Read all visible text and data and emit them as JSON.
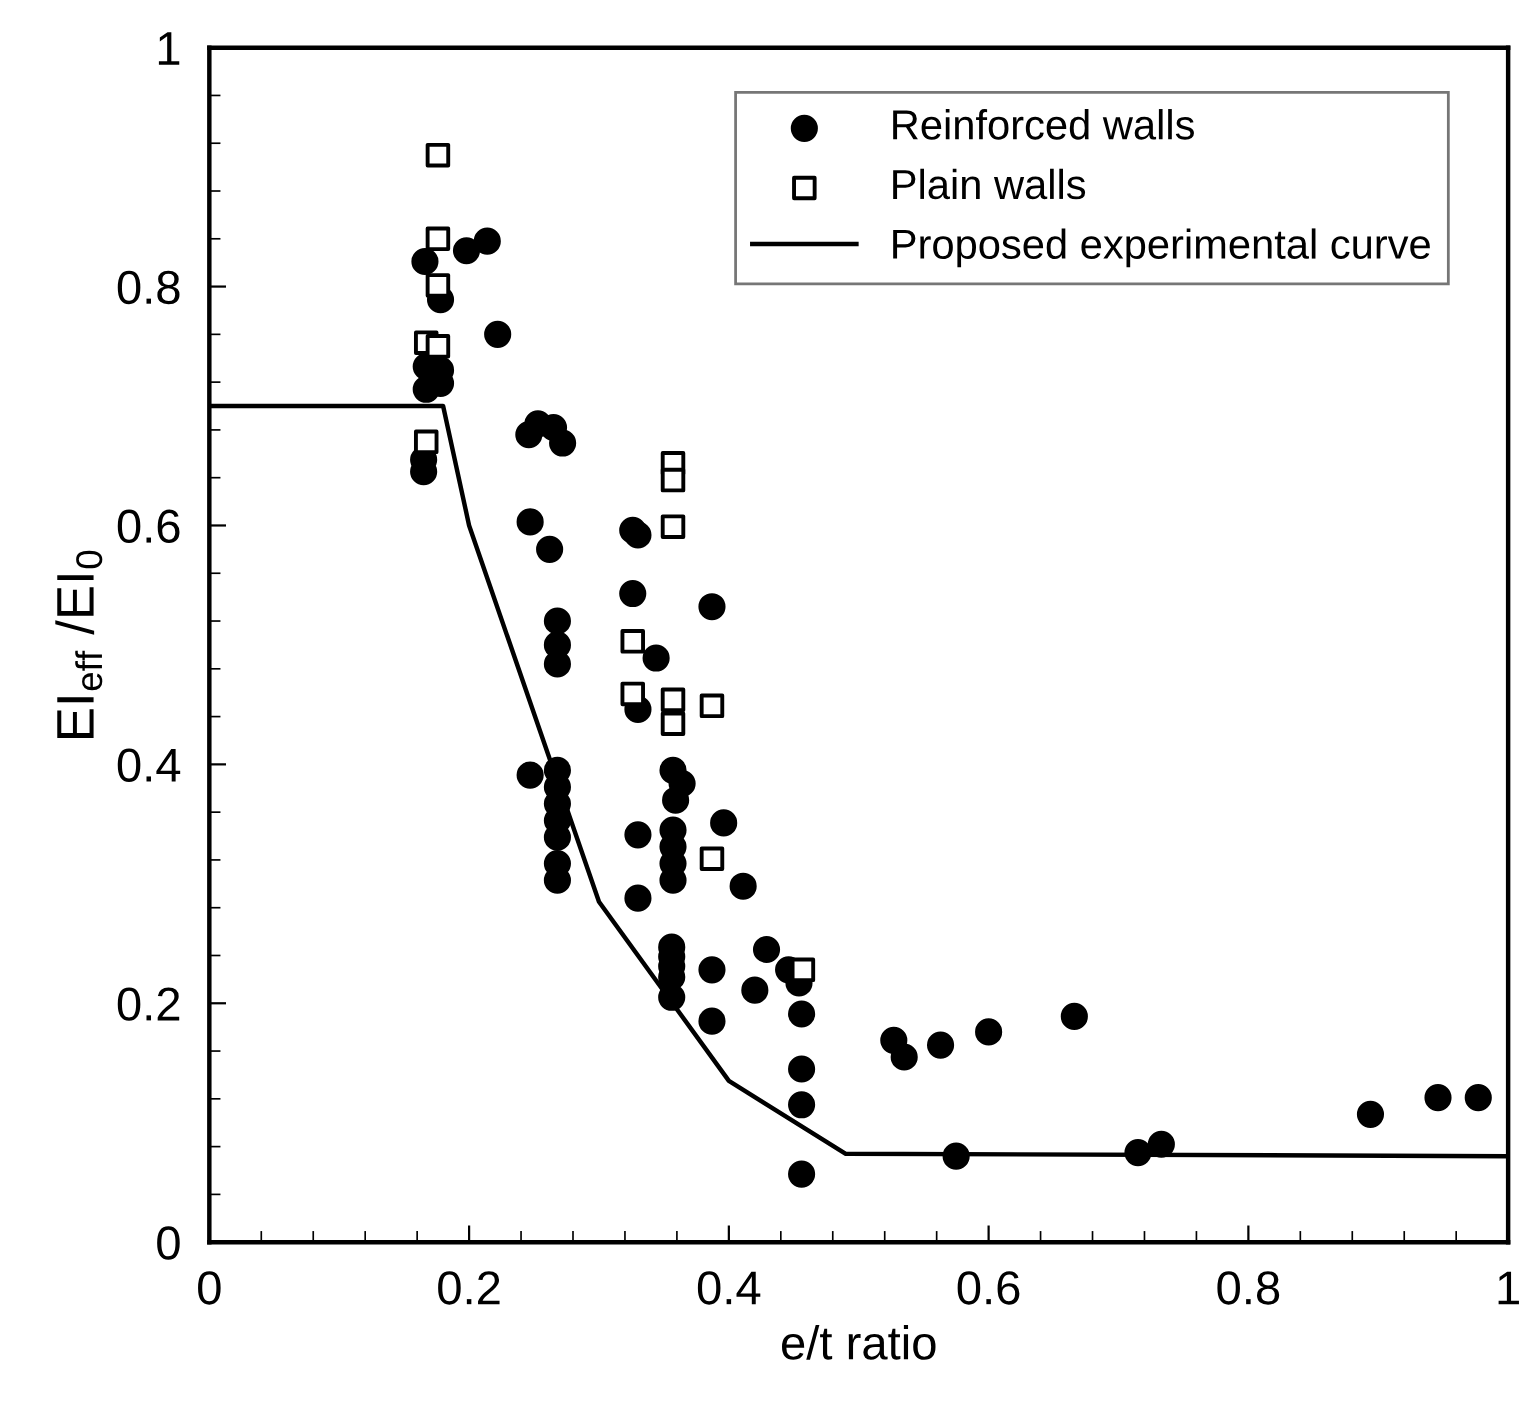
{
  "chart_data": {
    "type": "scatter",
    "xlabel": "e/t ratio",
    "ylabel": "EI$_{eff}$ /EI$_{0}$",
    "xlim": [
      0,
      1
    ],
    "ylim": [
      0,
      1
    ],
    "xticks": [
      0,
      0.2,
      0.4,
      0.6,
      0.8,
      1
    ],
    "yticks": [
      0,
      0.2,
      0.4,
      0.6,
      0.8,
      1
    ],
    "grid": false,
    "legend": "top right",
    "series": [
      {
        "name": "Reinforced walls",
        "color": "#000000",
        "marker": "circle",
        "x": [
          0.166,
          0.198,
          0.214,
          0.178,
          0.222,
          0.167,
          0.178,
          0.178,
          0.167,
          0.165,
          0.165,
          0.253,
          0.246,
          0.265,
          0.272,
          0.247,
          0.262,
          0.326,
          0.33,
          0.326,
          0.387,
          0.268,
          0.268,
          0.268,
          0.344,
          0.33,
          0.247,
          0.268,
          0.268,
          0.268,
          0.268,
          0.268,
          0.268,
          0.268,
          0.357,
          0.364,
          0.359,
          0.33,
          0.357,
          0.357,
          0.357,
          0.357,
          0.396,
          0.411,
          0.33,
          0.356,
          0.356,
          0.356,
          0.356,
          0.356,
          0.387,
          0.387,
          0.429,
          0.42,
          0.446,
          0.454,
          0.456,
          0.456,
          0.456,
          0.456,
          0.527,
          0.535,
          0.563,
          0.575,
          0.6,
          0.666,
          0.715,
          0.733,
          0.894,
          0.946,
          0.977
        ],
        "values": [
          0.821,
          0.83,
          0.838,
          0.789,
          0.76,
          0.733,
          0.73,
          0.719,
          0.714,
          0.655,
          0.645,
          0.685,
          0.676,
          0.682,
          0.669,
          0.603,
          0.58,
          0.596,
          0.592,
          0.543,
          0.532,
          0.52,
          0.5,
          0.484,
          0.489,
          0.446,
          0.391,
          0.395,
          0.381,
          0.367,
          0.353,
          0.339,
          0.317,
          0.303,
          0.395,
          0.384,
          0.37,
          0.341,
          0.345,
          0.331,
          0.317,
          0.303,
          0.351,
          0.298,
          0.288,
          0.247,
          0.239,
          0.231,
          0.222,
          0.205,
          0.228,
          0.185,
          0.245,
          0.211,
          0.228,
          0.217,
          0.191,
          0.145,
          0.115,
          0.057,
          0.169,
          0.155,
          0.165,
          0.072,
          0.176,
          0.189,
          0.075,
          0.082,
          0.107,
          0.121,
          0.121
        ]
      },
      {
        "name": "Plain walls",
        "color": "#000000",
        "marker": "square",
        "x": [
          0.176,
          0.176,
          0.176,
          0.167,
          0.176,
          0.167,
          0.357,
          0.357,
          0.357,
          0.326,
          0.326,
          0.357,
          0.357,
          0.387,
          0.387,
          0.457
        ],
        "values": [
          0.91,
          0.84,
          0.801,
          0.753,
          0.75,
          0.67,
          0.652,
          0.638,
          0.599,
          0.503,
          0.459,
          0.454,
          0.434,
          0.449,
          0.321,
          0.228
        ]
      },
      {
        "name": "Proposed experimental curve",
        "type": "line",
        "color": "#000000",
        "marker": "none",
        "line_style": "solid",
        "x": [
          0,
          0.18,
          0.2,
          0.3,
          0.4,
          0.49,
          1
        ],
        "values": [
          0.7,
          0.7,
          0.6,
          0.285,
          0.135,
          0.074,
          0.072
        ]
      }
    ]
  }
}
